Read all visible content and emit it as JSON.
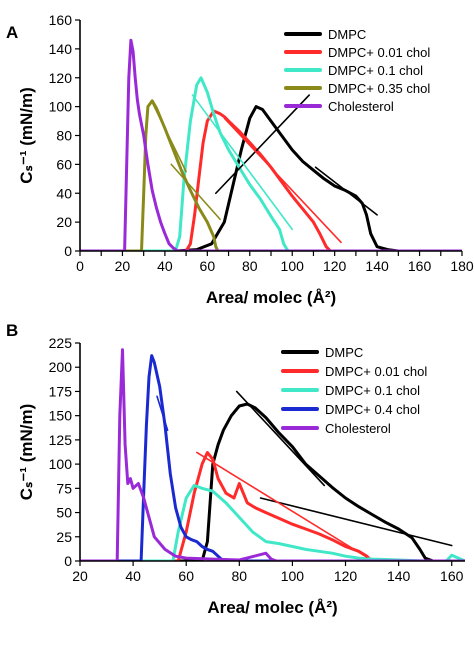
{
  "chart_data": [
    {
      "panel": "A",
      "type": "line",
      "xlabel": "Area/ molec (Å²)",
      "ylabel": "Cₛ⁻¹ (mN/m)",
      "xlim": [
        0,
        180
      ],
      "ylim": [
        0,
        160
      ],
      "xticks": [
        0,
        10,
        20,
        30,
        40,
        50,
        60,
        70,
        80,
        90,
        100,
        110,
        120,
        130,
        140,
        150,
        160,
        170,
        180
      ],
      "xtick_labels": [
        "0",
        "",
        "20",
        "",
        "40",
        "",
        "60",
        "",
        "80",
        "",
        "100",
        "",
        "120",
        "",
        "140",
        "",
        "160",
        "",
        "180"
      ],
      "yticks": [
        0,
        20,
        40,
        60,
        80,
        100,
        120,
        140,
        160
      ],
      "legend_position": "top-right",
      "series": [
        {
          "name": "DMPC",
          "color": "#000000",
          "x": [
            0,
            45,
            55,
            62,
            68,
            72,
            76,
            80,
            83,
            86,
            90,
            95,
            100,
            105,
            110,
            115,
            120,
            125,
            130,
            133,
            135,
            137,
            140,
            145,
            150,
            180
          ],
          "y": [
            0,
            0,
            1,
            5,
            20,
            45,
            70,
            92,
            100,
            98,
            90,
            80,
            70,
            62,
            56,
            50,
            45,
            42,
            38,
            33,
            25,
            12,
            3,
            1,
            0,
            0
          ]
        },
        {
          "name": "DMPC+ 0.01 chol",
          "color": "#ff2a2a",
          "x": [
            0,
            50,
            52,
            54,
            56,
            58,
            60,
            63,
            66,
            68,
            70,
            75,
            80,
            85,
            90,
            95,
            100,
            105,
            110,
            113,
            116,
            118,
            180
          ],
          "y": [
            0,
            0,
            5,
            25,
            50,
            75,
            90,
            97,
            95,
            93,
            90,
            83,
            75,
            67,
            58,
            48,
            38,
            29,
            20,
            12,
            3,
            0,
            0
          ]
        },
        {
          "name": "DMPC+ 0.1 chol",
          "color": "#40e8c8",
          "x": [
            0,
            45,
            47,
            49,
            52,
            55,
            57,
            60,
            63,
            66,
            70,
            75,
            80,
            85,
            90,
            94,
            96,
            98,
            180
          ],
          "y": [
            0,
            0,
            10,
            50,
            90,
            115,
            120,
            110,
            95,
            82,
            70,
            58,
            46,
            36,
            24,
            15,
            5,
            0,
            0
          ]
        },
        {
          "name": "DMPC+ 0.35 chol",
          "color": "#8a8a1a",
          "x": [
            0,
            29,
            30,
            31,
            32,
            34,
            36,
            38,
            40,
            44,
            48,
            52,
            56,
            60,
            63,
            64,
            65,
            180
          ],
          "y": [
            0,
            0,
            40,
            80,
            100,
            104,
            99,
            92,
            85,
            70,
            55,
            42,
            30,
            20,
            10,
            3,
            0,
            0
          ]
        },
        {
          "name": "Cholesterol",
          "color": "#9a2ad8",
          "x": [
            0,
            21,
            22,
            23,
            24,
            25,
            26,
            27,
            28,
            30,
            32,
            34,
            36,
            38,
            40,
            42,
            44,
            46,
            180
          ],
          "y": [
            0,
            0,
            60,
            120,
            146,
            138,
            120,
            105,
            95,
            80,
            60,
            42,
            30,
            20,
            12,
            5,
            2,
            0,
            0
          ]
        }
      ],
      "fit_lines": [
        {
          "color": "#000000",
          "x": [
            64,
            108
          ],
          "y": [
            40,
            108
          ]
        },
        {
          "color": "#000000",
          "x": [
            111,
            140
          ],
          "y": [
            58,
            25
          ]
        },
        {
          "color": "#ff2a2a",
          "x": [
            68,
            123
          ],
          "y": [
            92,
            6
          ]
        },
        {
          "color": "#40e8c8",
          "x": [
            53,
            100
          ],
          "y": [
            108,
            15
          ]
        },
        {
          "color": "#8a8a1a",
          "x": [
            34,
            50
          ],
          "y": [
            103,
            55
          ]
        },
        {
          "color": "#8a8a1a",
          "x": [
            43,
            66
          ],
          "y": [
            60,
            22
          ]
        }
      ]
    },
    {
      "panel": "B",
      "type": "line",
      "xlabel": "Area/ molec (Å²)",
      "ylabel": "Cₛ⁻¹ (mN/m)",
      "xlim": [
        20,
        165
      ],
      "ylim": [
        0,
        225
      ],
      "xticks": [
        20,
        40,
        60,
        80,
        100,
        120,
        140,
        160
      ],
      "yticks": [
        0,
        25,
        50,
        75,
        100,
        125,
        150,
        175,
        200,
        225
      ],
      "legend_position": "top-right",
      "series": [
        {
          "name": "DMPC",
          "color": "#000000",
          "x": [
            20,
            66,
            68,
            69,
            70,
            72,
            74,
            77,
            80,
            83,
            86,
            90,
            95,
            100,
            105,
            110,
            115,
            120,
            125,
            130,
            135,
            140,
            145,
            148,
            150,
            153,
            165
          ],
          "y": [
            0,
            0,
            20,
            60,
            100,
            120,
            135,
            150,
            160,
            162,
            158,
            148,
            132,
            118,
            100,
            88,
            76,
            65,
            56,
            48,
            40,
            33,
            24,
            12,
            3,
            0,
            0
          ]
        },
        {
          "name": "DMPC+ 0.01 chol",
          "color": "#ff2a2a",
          "x": [
            20,
            57,
            60,
            63,
            66,
            68,
            70,
            72,
            75,
            78,
            80,
            83,
            86,
            90,
            95,
            100,
            105,
            110,
            115,
            120,
            125,
            128,
            130,
            165
          ],
          "y": [
            0,
            0,
            30,
            70,
            100,
            112,
            105,
            85,
            70,
            65,
            80,
            60,
            55,
            50,
            44,
            38,
            33,
            28,
            22,
            15,
            10,
            5,
            0,
            0
          ]
        },
        {
          "name": "DMPC+ 0.1 chol",
          "color": "#40e8c8",
          "x": [
            20,
            55,
            57,
            60,
            63,
            66,
            70,
            75,
            80,
            85,
            90,
            95,
            100,
            105,
            110,
            115,
            120,
            125,
            130,
            140,
            150,
            158,
            160,
            165
          ],
          "y": [
            0,
            0,
            30,
            65,
            78,
            75,
            72,
            60,
            45,
            30,
            20,
            18,
            15,
            12,
            10,
            8,
            5,
            3,
            2,
            1,
            0,
            0,
            6,
            0
          ]
        },
        {
          "name": "DMPC+ 0.4 chol",
          "color": "#1a2ad0",
          "x": [
            20,
            43,
            44,
            45,
            46,
            47,
            48,
            50,
            52,
            54,
            56,
            58,
            60,
            62,
            64,
            66,
            68,
            70,
            72,
            74,
            165
          ],
          "y": [
            0,
            0,
            70,
            140,
            190,
            212,
            205,
            180,
            140,
            90,
            55,
            35,
            25,
            22,
            20,
            15,
            12,
            10,
            5,
            0,
            0
          ]
        },
        {
          "name": "Cholesterol",
          "color": "#9a2ad8",
          "x": [
            20,
            34,
            35,
            36,
            37,
            38,
            39,
            40,
            42,
            44,
            46,
            48,
            52,
            56,
            60,
            70,
            80,
            90,
            92,
            94,
            165
          ],
          "y": [
            0,
            0,
            150,
            218,
            120,
            80,
            85,
            75,
            80,
            65,
            45,
            25,
            12,
            5,
            3,
            2,
            1,
            8,
            2,
            0,
            0
          ]
        }
      ],
      "fit_lines": [
        {
          "color": "#000000",
          "x": [
            79,
            112
          ],
          "y": [
            175,
            78
          ]
        },
        {
          "color": "#000000",
          "x": [
            88,
            160
          ],
          "y": [
            65,
            16
          ]
        },
        {
          "color": "#ff2a2a",
          "x": [
            64,
            128
          ],
          "y": [
            112,
            4
          ]
        },
        {
          "color": "#1a2ad0",
          "x": [
            49,
            53
          ],
          "y": [
            170,
            135
          ]
        }
      ]
    }
  ]
}
